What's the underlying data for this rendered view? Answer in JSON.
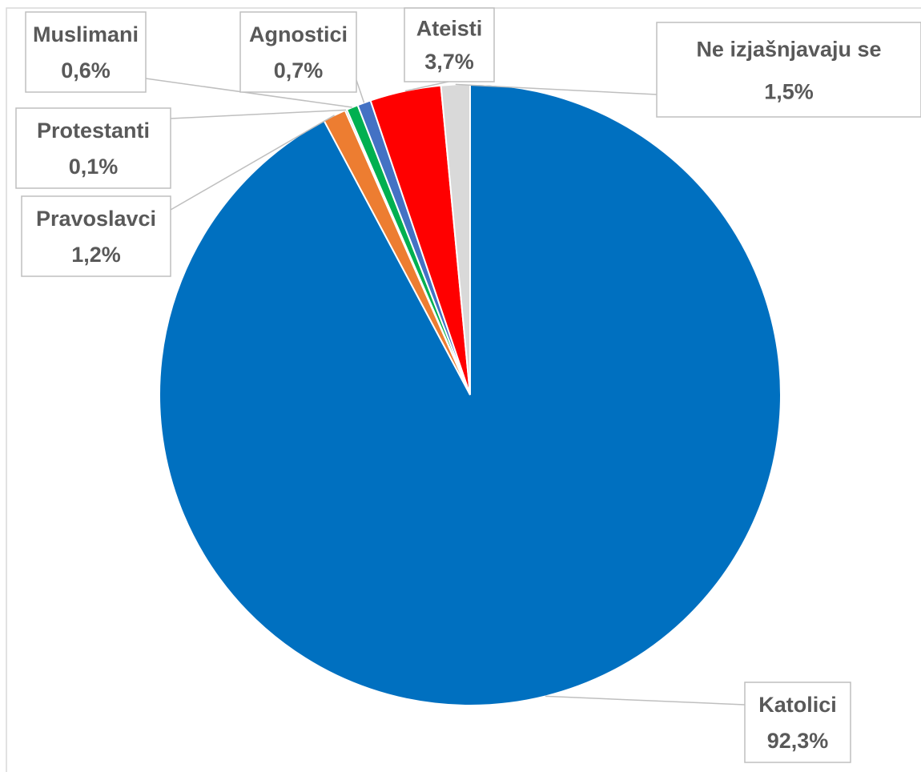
{
  "chart_data": {
    "type": "pie",
    "categories": [
      "Katolici",
      "Pravoslavci",
      "Protestanti",
      "Muslimani",
      "Agnostici",
      "Ateisti",
      "Ne izjašnjavaju se"
    ],
    "values": [
      92.3,
      1.2,
      0.1,
      0.6,
      0.7,
      3.7,
      1.5
    ],
    "value_labels": [
      "92,3%",
      "1,2%",
      "0,1%",
      "0,6%",
      "0,7%",
      "3,7%",
      "1,5%"
    ],
    "colors": [
      "#0070c0",
      "#ed7d31",
      "#a5a5a5",
      "#00b050",
      "#4472c4",
      "#ff0000",
      "#d9d9d9"
    ]
  }
}
